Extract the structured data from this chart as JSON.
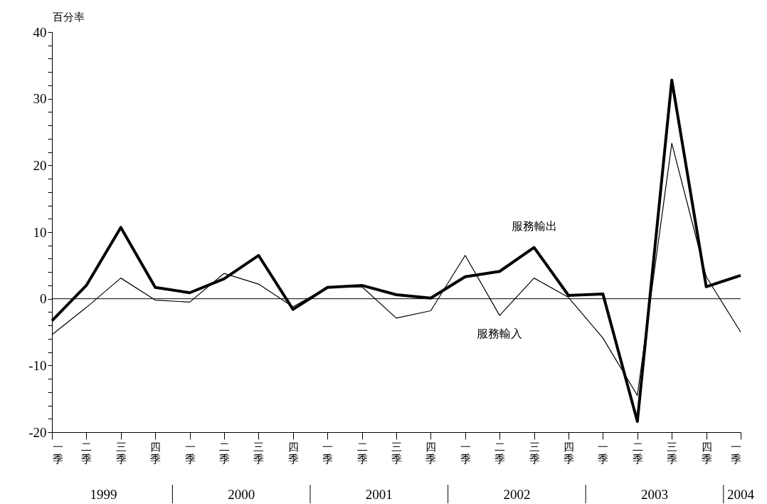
{
  "chart_data": {
    "type": "line",
    "ylabel": "百分率",
    "categories": [
      "一季",
      "二季",
      "三季",
      "四季",
      "一季",
      "二季",
      "三季",
      "四季",
      "一季",
      "二季",
      "三季",
      "四季",
      "一季",
      "二季",
      "三季",
      "四季",
      "一季",
      "二季",
      "三季",
      "四季",
      "一季"
    ],
    "series": [
      {
        "name": "服務輸出",
        "color": "#000000",
        "values": [
          -3.3,
          2.0,
          10.7,
          1.7,
          0.9,
          3.0,
          6.5,
          -1.6,
          1.7,
          2.0,
          0.6,
          0.1,
          3.3,
          4.1,
          7.7,
          0.5,
          0.7,
          -18.4,
          32.8,
          1.8,
          3.5
        ]
      },
      {
        "name": "服務輸入",
        "color": "#000000",
        "values": [
          -5.4,
          -1.3,
          3.1,
          -0.2,
          -0.5,
          3.8,
          2.2,
          -1.2,
          1.7,
          1.8,
          -2.9,
          -1.8,
          6.5,
          -2.5,
          3.1,
          0.2,
          -5.9,
          -14.5,
          23.3,
          3.3,
          -5.0
        ]
      }
    ],
    "ylim": [
      -20,
      40
    ],
    "yticks": [
      -20,
      {
        "value": -18,
        "label": null
      },
      {
        "value": -16,
        "label": null
      },
      {
        "value": -14,
        "label": null
      },
      {
        "value": -12,
        "label": null
      },
      -10,
      {
        "value": -8,
        "label": null
      },
      {
        "value": -6,
        "label": null
      },
      {
        "value": -4,
        "label": null
      },
      {
        "value": -2,
        "label": null
      },
      0,
      {
        "value": 2,
        "label": null
      },
      {
        "value": 4,
        "label": null
      },
      {
        "value": 6,
        "label": null
      },
      {
        "value": 8,
        "label": null
      },
      10,
      {
        "value": 12,
        "label": null
      },
      {
        "value": 14,
        "label": null
      },
      {
        "value": 16,
        "label": null
      },
      {
        "value": 18,
        "label": null
      },
      20,
      {
        "value": 22,
        "label": null
      },
      {
        "value": 24,
        "label": null
      },
      {
        "value": 26,
        "label": null
      },
      {
        "value": 28,
        "label": null
      },
      30,
      {
        "value": 32,
        "label": null
      },
      {
        "value": 34,
        "label": null
      },
      {
        "value": 36,
        "label": null
      },
      {
        "value": 38,
        "label": null
      },
      40
    ],
    "ref_lines": [
      {
        "axis": "y",
        "value": 0,
        "color": "#000000"
      }
    ],
    "annotations": [
      "1999",
      "2000",
      "2001",
      "2002",
      "2003",
      "2004"
    ],
    "grid": false,
    "legend": false,
    "marker": "none",
    "line_style": "solid"
  }
}
